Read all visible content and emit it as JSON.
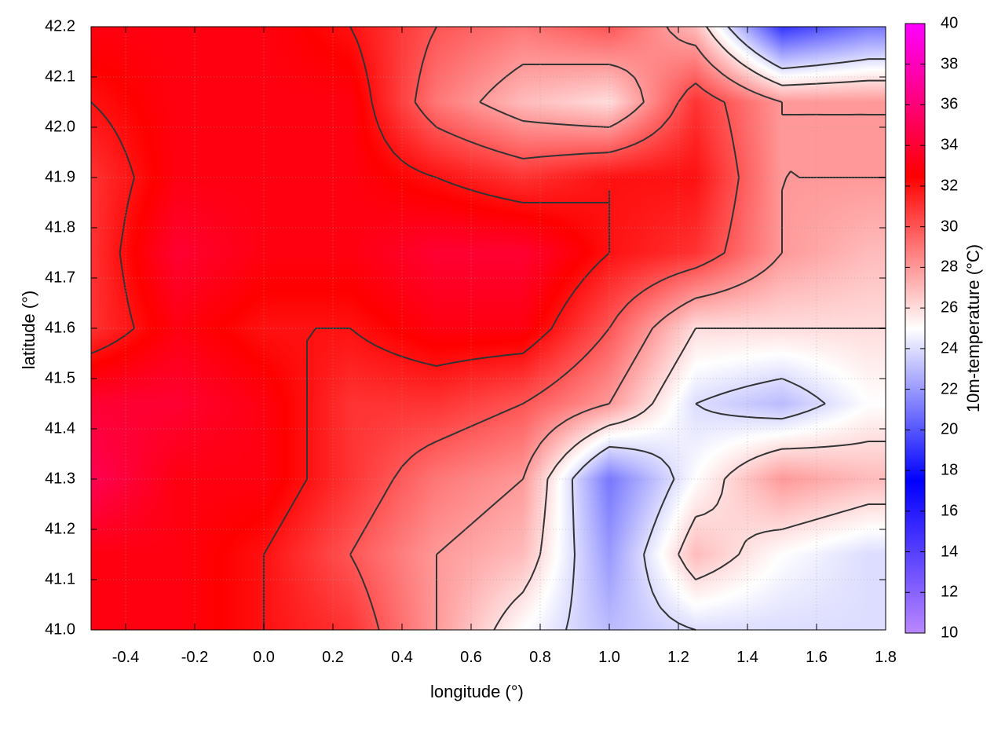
{
  "chart_data": {
    "type": "heatmap",
    "xlabel": "longitude (°)",
    "ylabel": "latitude (°)",
    "colorbar_label": "10m-temperature (°C)",
    "xlim": [
      -0.5,
      1.8
    ],
    "ylim": [
      41.0,
      42.2
    ],
    "clim": [
      10,
      40
    ],
    "x_ticks": [
      "-0.4",
      "-0.2",
      "0.0",
      "0.2",
      "0.4",
      "0.6",
      "0.8",
      "1.0",
      "1.2",
      "1.4",
      "1.6",
      "1.8"
    ],
    "y_ticks": [
      "41.0",
      "41.1",
      "41.2",
      "41.3",
      "41.4",
      "41.5",
      "41.6",
      "41.7",
      "41.8",
      "41.9",
      "42.0",
      "42.1",
      "42.2"
    ],
    "colorbar_ticks": [
      "10",
      "12",
      "14",
      "16",
      "18",
      "20",
      "22",
      "24",
      "26",
      "28",
      "30",
      "32",
      "34",
      "36",
      "38",
      "40"
    ],
    "colormap": [
      [
        10,
        "#bb88ff"
      ],
      [
        17.5,
        "#0000ff"
      ],
      [
        25,
        "#ffffff"
      ],
      [
        32.5,
        "#ff0000"
      ],
      [
        40,
        "#ff00ff"
      ]
    ],
    "contour_levels": [
      24,
      26,
      28,
      30,
      32
    ],
    "contour_color": "#333333",
    "grid": true,
    "grid_lon": [
      -0.5,
      -0.25,
      0,
      0.25,
      0.5,
      0.75,
      1.0,
      1.25,
      1.5,
      1.75
    ],
    "grid_lat": [
      42.2,
      42.05,
      41.9,
      41.75,
      41.6,
      41.45,
      41.3,
      41.15,
      41.0
    ],
    "values": [
      [
        33,
        33,
        33,
        32,
        30,
        29,
        30,
        27,
        19,
        21
      ],
      [
        32,
        33,
        33,
        33,
        29,
        27,
        26,
        31,
        28,
        28
      ],
      [
        31,
        33,
        33,
        33,
        32,
        31,
        32,
        32,
        28,
        28
      ],
      [
        31,
        34,
        33,
        33,
        34,
        34,
        32,
        31,
        28,
        27
      ],
      [
        31,
        33,
        32,
        32,
        33,
        33,
        30,
        26,
        26,
        26
      ],
      [
        34,
        34,
        33,
        31,
        31,
        30,
        28,
        24,
        23,
        25
      ],
      [
        35,
        33,
        33,
        31,
        29,
        28,
        21,
        25,
        28,
        27
      ],
      [
        33,
        33,
        32,
        30,
        28,
        27,
        22,
        27,
        25,
        24
      ],
      [
        33,
        33,
        32,
        31,
        28,
        25,
        23,
        24,
        24,
        24
      ]
    ]
  }
}
